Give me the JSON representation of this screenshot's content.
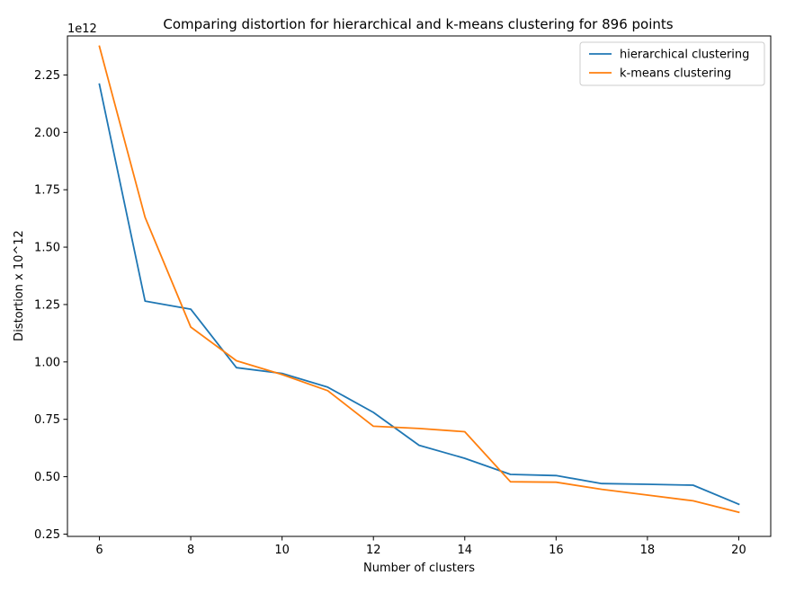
{
  "chart_data": {
    "type": "line",
    "title": "Comparing distortion for hierarchical and k-means clustering for 896 points",
    "xlabel": "Number of clusters",
    "ylabel": "Distortion x 10^12",
    "offset_label": "1e12",
    "xlim": [
      5.3,
      20.7
    ],
    "ylim": [
      0.24,
      2.42
    ],
    "x_ticks": [
      6,
      8,
      10,
      12,
      14,
      16,
      18,
      20
    ],
    "x_tick_labels": [
      "6",
      "8",
      "10",
      "12",
      "14",
      "16",
      "18",
      "20"
    ],
    "y_ticks": [
      0.25,
      0.5,
      0.75,
      1.0,
      1.25,
      1.5,
      1.75,
      2.0,
      2.25
    ],
    "y_tick_labels": [
      "0.25",
      "0.50",
      "0.75",
      "1.00",
      "1.25",
      "1.50",
      "1.75",
      "2.00",
      "2.25"
    ],
    "grid": false,
    "legend_position": "top-right",
    "x": [
      6,
      7,
      8,
      9,
      10,
      11,
      12,
      13,
      14,
      15,
      16,
      17,
      18,
      19,
      20
    ],
    "series": [
      {
        "name": "hierarchical clustering",
        "color": "#1f77b4",
        "values": [
          2.21,
          1.265,
          1.23,
          0.975,
          0.95,
          0.89,
          0.78,
          0.637,
          0.58,
          0.51,
          0.505,
          0.47,
          0.467,
          0.463,
          0.38
        ]
      },
      {
        "name": "k-means clustering",
        "color": "#ff7f0e",
        "values": [
          2.375,
          1.63,
          1.152,
          1.005,
          0.945,
          0.875,
          0.72,
          0.71,
          0.696,
          0.478,
          0.476,
          0.445,
          0.42,
          0.395,
          0.345
        ]
      }
    ]
  }
}
